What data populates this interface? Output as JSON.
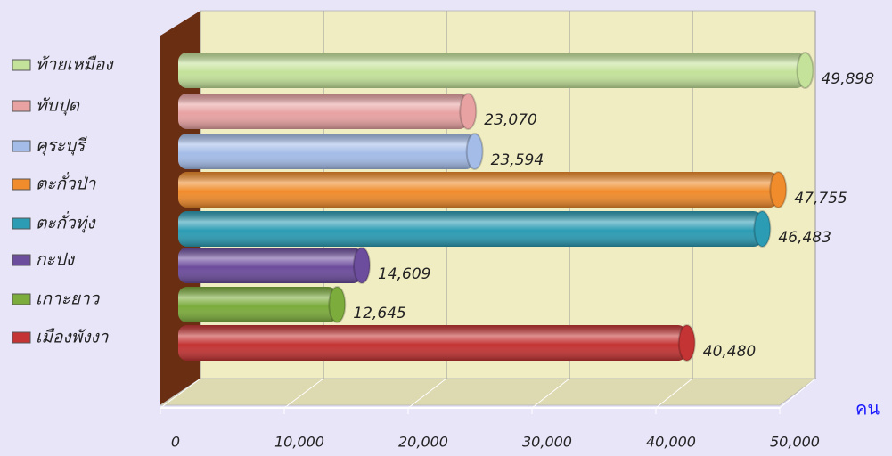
{
  "chart_data": {
    "type": "bar",
    "categories": [
      "ท้ายเหมือง",
      "ทับปุด",
      "คุระบุรี",
      "ตะกั่วป่า",
      "ตะกั่วทุ่ง",
      "กะปง",
      "เกาะยาว",
      "เมืองพังงา"
    ],
    "values": [
      49898,
      23070,
      23594,
      47755,
      46483,
      14609,
      12645,
      40480
    ],
    "value_labels": [
      "49,898",
      "23,070",
      "23,594",
      "47,755",
      "46,483",
      "14,609",
      "12,645",
      "40,480"
    ],
    "colors": [
      "#c4e29a",
      "#e8a2a2",
      "#a4bce8",
      "#f08c2c",
      "#2c9cb4",
      "#6c4c9c",
      "#7cac3c",
      "#c43434"
    ],
    "xlim": [
      0,
      50000
    ],
    "xticks": [
      0,
      {
        "value": 10000,
        "label": "10,000"
      },
      {
        "value": 20000,
        "label": "20,000"
      },
      {
        "value": 30000,
        "label": "30,000"
      },
      {
        "value": 40000,
        "label": "40,000"
      },
      {
        "value": 50000,
        "label": "50,000"
      }
    ],
    "xlabel": "คน",
    "grid": true
  }
}
